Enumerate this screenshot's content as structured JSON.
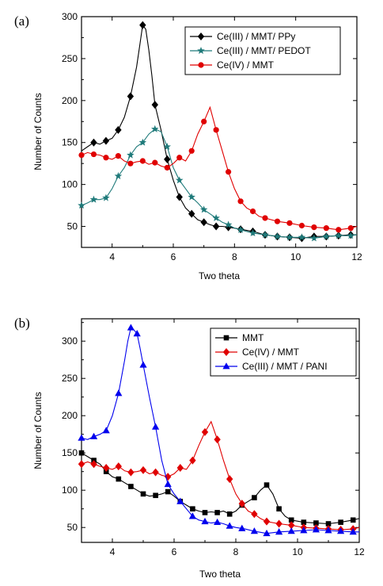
{
  "chart_data": [
    {
      "type": "line",
      "panel_label": "(a)",
      "xlabel": "Two theta",
      "ylabel": "Number of Counts",
      "xlim": [
        3,
        12
      ],
      "ylim": [
        25,
        300
      ],
      "xticks": [
        4,
        6,
        8,
        10,
        12
      ],
      "yticks": [
        50,
        100,
        150,
        200,
        250,
        300
      ],
      "legend_position": "top-right",
      "series": [
        {
          "name": "Ce(III) / MMT/ PPy",
          "color": "#000000",
          "marker": "diamond",
          "x": [
            3.0,
            3.2,
            3.4,
            3.6,
            3.8,
            4.0,
            4.2,
            4.4,
            4.6,
            4.8,
            4.9,
            5.0,
            5.1,
            5.2,
            5.3,
            5.4,
            5.6,
            5.8,
            6.0,
            6.2,
            6.4,
            6.6,
            6.8,
            7.0,
            7.2,
            7.4,
            7.6,
            7.8,
            8.0,
            8.3,
            8.6,
            9.0,
            9.4,
            9.8,
            10.2,
            10.6,
            11.0,
            11.4,
            11.8,
            12.0
          ],
          "y": [
            140,
            145,
            150,
            148,
            152,
            155,
            165,
            180,
            205,
            240,
            265,
            290,
            285,
            260,
            230,
            195,
            165,
            130,
            105,
            85,
            72,
            65,
            58,
            55,
            52,
            50,
            50,
            49,
            48,
            46,
            44,
            40,
            38,
            37,
            36,
            38,
            38,
            39,
            40,
            40
          ],
          "marker_x": [
            3.4,
            3.8,
            4.2,
            4.6,
            5.0,
            5.4,
            5.8,
            6.2,
            6.6,
            7.0,
            7.4,
            7.8,
            8.2,
            8.6,
            9.0,
            9.4,
            9.8,
            10.2,
            10.6,
            11.0,
            11.4,
            11.8
          ]
        },
        {
          "name": "Ce(III) / MMT/ PEDOT",
          "color": "#1f7a7a",
          "marker": "star",
          "x": [
            3.0,
            3.2,
            3.4,
            3.6,
            3.8,
            4.0,
            4.2,
            4.4,
            4.6,
            4.8,
            5.0,
            5.2,
            5.4,
            5.6,
            5.8,
            6.0,
            6.2,
            6.4,
            6.6,
            6.8,
            7.0,
            7.2,
            7.4,
            7.6,
            7.8,
            8.0,
            8.3,
            8.6,
            9.0,
            9.4,
            9.8,
            10.2,
            10.6,
            11.0,
            11.4,
            11.8,
            12.0
          ],
          "y": [
            75,
            78,
            82,
            82,
            84,
            95,
            110,
            120,
            135,
            145,
            150,
            160,
            166,
            163,
            145,
            120,
            105,
            95,
            85,
            78,
            70,
            65,
            60,
            55,
            52,
            48,
            45,
            42,
            40,
            38,
            37,
            37,
            36,
            38,
            39,
            39,
            40
          ],
          "marker_x": [
            3.0,
            3.4,
            3.8,
            4.2,
            4.6,
            5.0,
            5.4,
            5.8,
            6.2,
            6.6,
            7.0,
            7.4,
            7.8,
            8.2,
            8.6,
            9.0,
            9.4,
            9.8,
            10.2,
            10.6,
            11.0,
            11.4,
            11.8
          ]
        },
        {
          "name": "Ce(IV) / MMT",
          "color": "#e00000",
          "marker": "circle",
          "x": [
            3.0,
            3.2,
            3.4,
            3.6,
            3.8,
            4.0,
            4.2,
            4.4,
            4.6,
            4.8,
            5.0,
            5.2,
            5.4,
            5.6,
            5.8,
            6.0,
            6.2,
            6.4,
            6.6,
            6.8,
            7.0,
            7.2,
            7.4,
            7.6,
            7.8,
            8.0,
            8.2,
            8.4,
            8.6,
            8.8,
            9.0,
            9.4,
            9.8,
            10.2,
            10.6,
            11.0,
            11.4,
            11.8,
            12.0
          ],
          "y": [
            135,
            138,
            136,
            135,
            132,
            130,
            134,
            128,
            125,
            127,
            128,
            124,
            126,
            122,
            120,
            125,
            132,
            128,
            140,
            160,
            175,
            192,
            165,
            140,
            115,
            95,
            80,
            72,
            68,
            62,
            60,
            56,
            54,
            51,
            49,
            48,
            46,
            48,
            50
          ],
          "marker_x": [
            3.0,
            3.4,
            3.8,
            4.2,
            4.6,
            5.0,
            5.4,
            5.8,
            6.2,
            6.6,
            7.0,
            7.4,
            7.8,
            8.2,
            8.6,
            9.0,
            9.4,
            9.8,
            10.2,
            10.6,
            11.0,
            11.4,
            11.8
          ]
        }
      ]
    },
    {
      "type": "line",
      "panel_label": "(b)",
      "xlabel": "Two theta",
      "ylabel": "Number of Counts",
      "xlim": [
        3,
        12
      ],
      "ylim": [
        30,
        330
      ],
      "xticks": [
        4,
        6,
        8,
        10,
        12
      ],
      "yticks": [
        50,
        100,
        150,
        200,
        250,
        300
      ],
      "legend_position": "top-right",
      "series": [
        {
          "name": "MMT",
          "color": "#000000",
          "marker": "square",
          "x": [
            3.0,
            3.2,
            3.4,
            3.6,
            3.8,
            4.0,
            4.2,
            4.4,
            4.6,
            4.8,
            5.0,
            5.2,
            5.4,
            5.6,
            5.8,
            6.0,
            6.2,
            6.4,
            6.6,
            6.8,
            7.0,
            7.2,
            7.4,
            7.6,
            7.8,
            8.0,
            8.2,
            8.4,
            8.6,
            8.8,
            9.0,
            9.2,
            9.4,
            9.6,
            9.8,
            10.2,
            10.6,
            11.0,
            11.4,
            11.8,
            12.0
          ],
          "y": [
            150,
            145,
            140,
            135,
            125,
            118,
            115,
            110,
            105,
            100,
            95,
            92,
            93,
            95,
            98,
            92,
            85,
            80,
            75,
            72,
            70,
            71,
            70,
            72,
            68,
            72,
            80,
            85,
            90,
            100,
            107,
            95,
            75,
            65,
            60,
            57,
            56,
            55,
            57,
            60,
            62
          ],
          "marker_x": [
            3.0,
            3.4,
            3.8,
            4.2,
            4.6,
            5.0,
            5.4,
            5.8,
            6.2,
            6.6,
            7.0,
            7.4,
            7.8,
            8.2,
            8.6,
            9.0,
            9.4,
            9.8,
            10.2,
            10.6,
            11.0,
            11.4,
            11.8
          ]
        },
        {
          "name": "Ce(IV) / MMT",
          "color": "#e00000",
          "marker": "diamond",
          "x": [
            3.0,
            3.2,
            3.4,
            3.6,
            3.8,
            4.0,
            4.2,
            4.4,
            4.6,
            4.8,
            5.0,
            5.2,
            5.4,
            5.6,
            5.8,
            6.0,
            6.2,
            6.4,
            6.6,
            6.8,
            7.0,
            7.2,
            7.4,
            7.6,
            7.8,
            8.0,
            8.2,
            8.4,
            8.6,
            8.8,
            9.0,
            9.4,
            9.8,
            10.2,
            10.6,
            11.0,
            11.4,
            11.8,
            12.0
          ],
          "y": [
            135,
            138,
            135,
            132,
            130,
            128,
            132,
            126,
            124,
            125,
            127,
            122,
            124,
            120,
            118,
            122,
            130,
            128,
            140,
            160,
            178,
            192,
            168,
            140,
            115,
            95,
            82,
            72,
            68,
            62,
            58,
            55,
            53,
            50,
            49,
            48,
            47,
            48,
            50
          ],
          "marker_x": [
            3.0,
            3.4,
            3.8,
            4.2,
            4.6,
            5.0,
            5.4,
            5.8,
            6.2,
            6.6,
            7.0,
            7.4,
            7.8,
            8.2,
            8.6,
            9.0,
            9.4,
            9.8,
            10.2,
            10.6,
            11.0,
            11.4,
            11.8
          ]
        },
        {
          "name": "Ce(III) / MMT / PANI",
          "color": "#0000ee",
          "marker": "triangle",
          "x": [
            3.0,
            3.2,
            3.4,
            3.6,
            3.8,
            4.0,
            4.2,
            4.4,
            4.5,
            4.6,
            4.7,
            4.8,
            4.9,
            5.0,
            5.2,
            5.4,
            5.6,
            5.8,
            6.0,
            6.2,
            6.4,
            6.6,
            6.8,
            7.0,
            7.2,
            7.4,
            7.6,
            7.8,
            8.0,
            8.3,
            8.6,
            9.0,
            9.4,
            9.8,
            10.2,
            10.6,
            11.0,
            11.4,
            11.8,
            12.0
          ],
          "y": [
            170,
            168,
            172,
            175,
            180,
            200,
            230,
            275,
            300,
            318,
            315,
            310,
            290,
            268,
            225,
            185,
            140,
            108,
            95,
            85,
            75,
            65,
            60,
            58,
            56,
            57,
            55,
            52,
            50,
            48,
            45,
            42,
            44,
            45,
            46,
            47,
            46,
            45,
            44,
            44
          ],
          "marker_x": [
            3.0,
            3.4,
            3.8,
            4.2,
            4.6,
            4.8,
            5.0,
            5.4,
            5.8,
            6.2,
            6.6,
            7.0,
            7.4,
            7.8,
            8.2,
            8.6,
            9.0,
            9.4,
            9.8,
            10.2,
            10.6,
            11.0,
            11.4,
            11.8
          ]
        }
      ]
    }
  ]
}
